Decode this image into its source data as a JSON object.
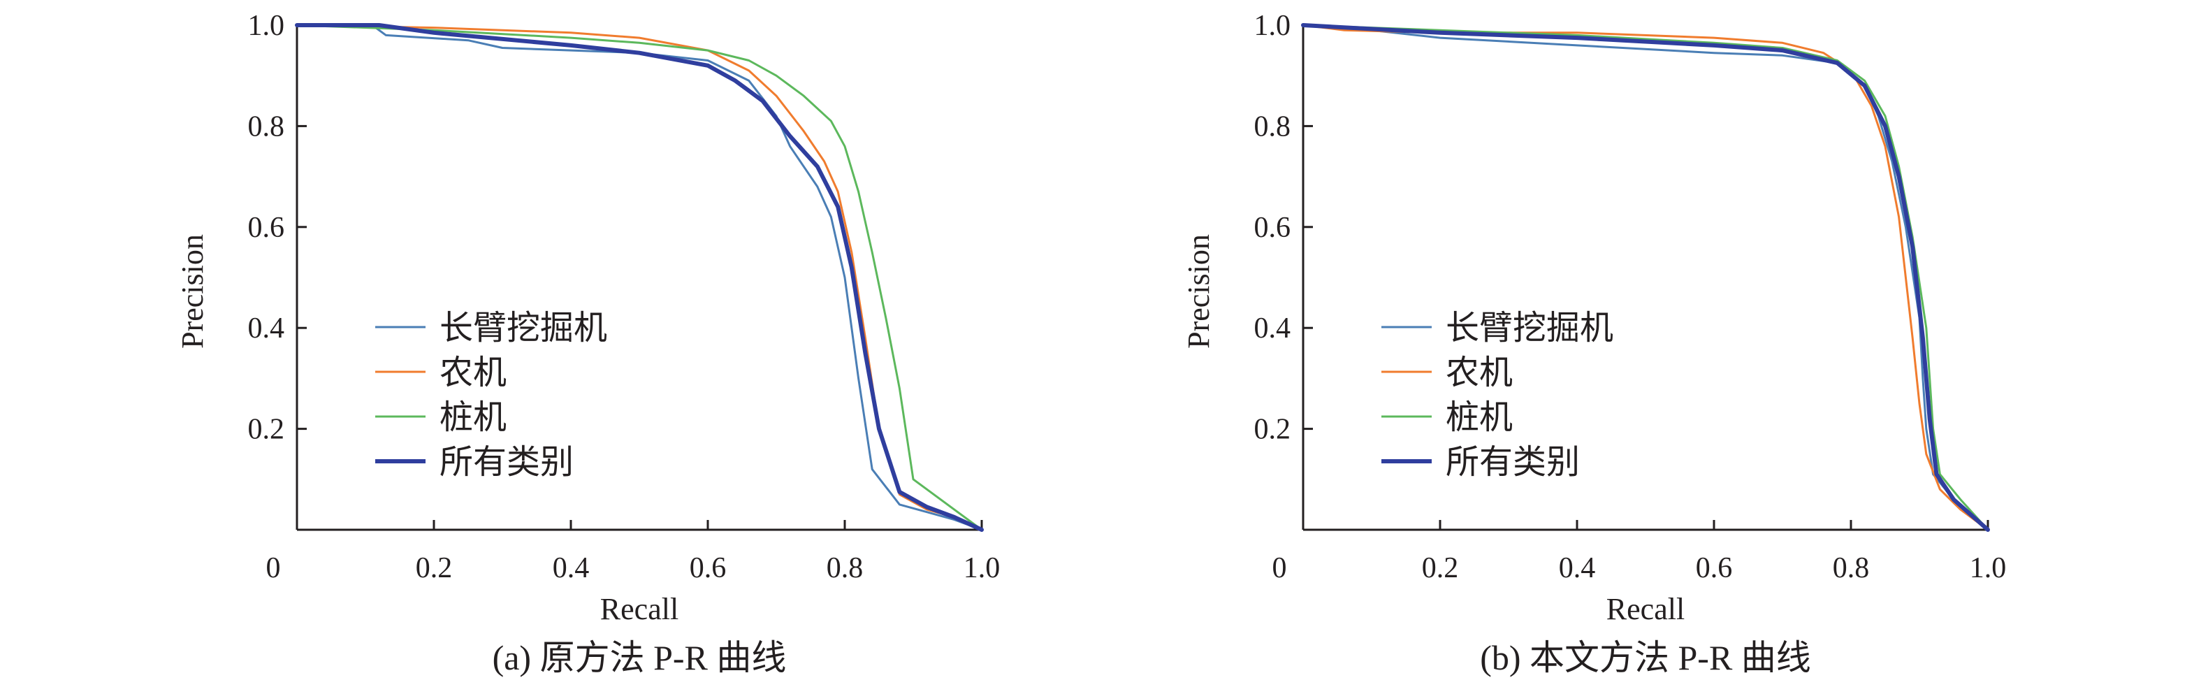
{
  "colors": {
    "axis": "#231f20",
    "long_arm_excavator": "#4a7eb5",
    "farm_machine": "#f07c2e",
    "pile_driver": "#5cb85c",
    "all_classes": "#2f3e9e"
  },
  "chart_data": [
    {
      "type": "line",
      "caption": "(a) 原方法 P-R 曲线",
      "xlabel": "Recall",
      "ylabel": "Precision",
      "xlim": [
        0,
        1
      ],
      "ylim": [
        0,
        1
      ],
      "x_ticks": [
        "0",
        "0.2",
        "0.4",
        "0.6",
        "0.8",
        "1.0"
      ],
      "y_ticks": [
        "0.2",
        "0.4",
        "0.6",
        "0.8",
        "1.0"
      ],
      "grid": false,
      "legend_position": "lower-left",
      "series": [
        {
          "name": "长臂挖掘机",
          "color_key": "long_arm_excavator",
          "points": [
            [
              0,
              1
            ],
            [
              0.11,
              1
            ],
            [
              0.13,
              0.98
            ],
            [
              0.25,
              0.97
            ],
            [
              0.3,
              0.955
            ],
            [
              0.5,
              0.945
            ],
            [
              0.6,
              0.93
            ],
            [
              0.66,
              0.89
            ],
            [
              0.7,
              0.82
            ],
            [
              0.72,
              0.76
            ],
            [
              0.74,
              0.72
            ],
            [
              0.76,
              0.68
            ],
            [
              0.78,
              0.62
            ],
            [
              0.8,
              0.5
            ],
            [
              0.82,
              0.3
            ],
            [
              0.84,
              0.12
            ],
            [
              0.88,
              0.05
            ],
            [
              0.92,
              0.035
            ],
            [
              0.96,
              0.02
            ],
            [
              1,
              0
            ]
          ]
        },
        {
          "name": "农机",
          "color_key": "farm_machine",
          "points": [
            [
              0,
              1
            ],
            [
              0.2,
              0.995
            ],
            [
              0.4,
              0.985
            ],
            [
              0.5,
              0.975
            ],
            [
              0.6,
              0.95
            ],
            [
              0.66,
              0.91
            ],
            [
              0.7,
              0.86
            ],
            [
              0.74,
              0.79
            ],
            [
              0.77,
              0.73
            ],
            [
              0.79,
              0.67
            ],
            [
              0.81,
              0.55
            ],
            [
              0.83,
              0.38
            ],
            [
              0.85,
              0.2
            ],
            [
              0.88,
              0.07
            ],
            [
              0.92,
              0.04
            ],
            [
              0.96,
              0.025
            ],
            [
              1,
              0
            ]
          ]
        },
        {
          "name": "桩机",
          "color_key": "pile_driver",
          "points": [
            [
              0,
              1
            ],
            [
              0.2,
              0.99
            ],
            [
              0.4,
              0.975
            ],
            [
              0.5,
              0.965
            ],
            [
              0.6,
              0.95
            ],
            [
              0.66,
              0.93
            ],
            [
              0.7,
              0.9
            ],
            [
              0.74,
              0.86
            ],
            [
              0.78,
              0.81
            ],
            [
              0.8,
              0.76
            ],
            [
              0.82,
              0.67
            ],
            [
              0.84,
              0.55
            ],
            [
              0.86,
              0.42
            ],
            [
              0.88,
              0.28
            ],
            [
              0.9,
              0.1
            ],
            [
              0.94,
              0.06
            ],
            [
              1,
              0
            ]
          ]
        },
        {
          "name": "所有类别",
          "color_key": "all_classes",
          "points": [
            [
              0,
              1
            ],
            [
              0.12,
              1
            ],
            [
              0.2,
              0.985
            ],
            [
              0.4,
              0.96
            ],
            [
              0.5,
              0.945
            ],
            [
              0.6,
              0.92
            ],
            [
              0.64,
              0.89
            ],
            [
              0.68,
              0.85
            ],
            [
              0.72,
              0.78
            ],
            [
              0.76,
              0.72
            ],
            [
              0.79,
              0.64
            ],
            [
              0.81,
              0.52
            ],
            [
              0.83,
              0.35
            ],
            [
              0.85,
              0.2
            ],
            [
              0.88,
              0.075
            ],
            [
              0.92,
              0.045
            ],
            [
              0.96,
              0.025
            ],
            [
              1,
              0
            ]
          ]
        }
      ]
    },
    {
      "type": "line",
      "caption": "(b) 本文方法 P-R 曲线",
      "xlabel": "Recall",
      "ylabel": "Precision",
      "xlim": [
        0,
        1
      ],
      "ylim": [
        0,
        1
      ],
      "x_ticks": [
        "0",
        "0.2",
        "0.4",
        "0.6",
        "0.8",
        "1.0"
      ],
      "y_ticks": [
        "0.2",
        "0.4",
        "0.6",
        "0.8",
        "1.0"
      ],
      "grid": false,
      "legend_position": "lower-left",
      "series": [
        {
          "name": "长臂挖掘机",
          "color_key": "long_arm_excavator",
          "points": [
            [
              0,
              1
            ],
            [
              0.1,
              0.99
            ],
            [
              0.2,
              0.975
            ],
            [
              0.4,
              0.96
            ],
            [
              0.6,
              0.945
            ],
            [
              0.7,
              0.94
            ],
            [
              0.78,
              0.925
            ],
            [
              0.82,
              0.88
            ],
            [
              0.84,
              0.82
            ],
            [
              0.86,
              0.73
            ],
            [
              0.88,
              0.6
            ],
            [
              0.9,
              0.42
            ],
            [
              0.905,
              0.3
            ],
            [
              0.91,
              0.2
            ],
            [
              0.92,
              0.11
            ],
            [
              0.95,
              0.06
            ],
            [
              1,
              0
            ]
          ]
        },
        {
          "name": "农机",
          "color_key": "farm_machine",
          "points": [
            [
              0,
              1
            ],
            [
              0.06,
              0.99
            ],
            [
              0.2,
              0.985
            ],
            [
              0.4,
              0.985
            ],
            [
              0.6,
              0.975
            ],
            [
              0.7,
              0.965
            ],
            [
              0.76,
              0.945
            ],
            [
              0.8,
              0.91
            ],
            [
              0.83,
              0.84
            ],
            [
              0.85,
              0.76
            ],
            [
              0.87,
              0.62
            ],
            [
              0.89,
              0.38
            ],
            [
              0.9,
              0.25
            ],
            [
              0.91,
              0.15
            ],
            [
              0.93,
              0.08
            ],
            [
              0.96,
              0.04
            ],
            [
              1,
              0
            ]
          ]
        },
        {
          "name": "桩机",
          "color_key": "pile_driver",
          "points": [
            [
              0,
              1
            ],
            [
              0.2,
              0.99
            ],
            [
              0.4,
              0.98
            ],
            [
              0.6,
              0.965
            ],
            [
              0.7,
              0.955
            ],
            [
              0.78,
              0.93
            ],
            [
              0.82,
              0.89
            ],
            [
              0.85,
              0.82
            ],
            [
              0.87,
              0.72
            ],
            [
              0.89,
              0.58
            ],
            [
              0.91,
              0.4
            ],
            [
              0.92,
              0.2
            ],
            [
              0.93,
              0.11
            ],
            [
              0.96,
              0.06
            ],
            [
              1,
              0
            ]
          ]
        },
        {
          "name": "所有类别",
          "color_key": "all_classes",
          "points": [
            [
              0,
              1
            ],
            [
              0.2,
              0.985
            ],
            [
              0.4,
              0.975
            ],
            [
              0.6,
              0.96
            ],
            [
              0.7,
              0.95
            ],
            [
              0.78,
              0.925
            ],
            [
              0.82,
              0.88
            ],
            [
              0.85,
              0.8
            ],
            [
              0.87,
              0.7
            ],
            [
              0.89,
              0.56
            ],
            [
              0.905,
              0.38
            ],
            [
              0.915,
              0.22
            ],
            [
              0.925,
              0.11
            ],
            [
              0.95,
              0.06
            ],
            [
              1,
              0
            ]
          ]
        }
      ]
    }
  ]
}
